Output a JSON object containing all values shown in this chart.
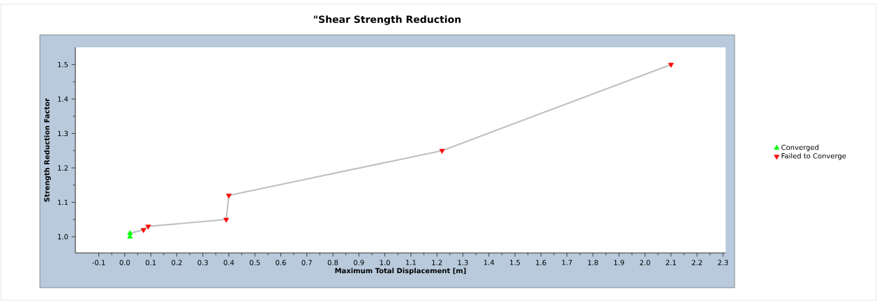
{
  "chart_data": {
    "type": "scatter",
    "title": "\"Shear Strength Reduction",
    "xlabel": "Maximum Total Displacement [m]",
    "ylabel": "Strength Reduction Factor",
    "xlim": [
      -0.19,
      2.31
    ],
    "ylim": [
      0.953,
      1.55
    ],
    "xticks": [
      -0.1,
      {
        "value": 0,
        "label": "0.0"
      },
      0.1,
      0.2,
      0.3,
      0.4,
      0.5,
      0.6,
      0.7,
      0.8,
      0.9,
      {
        "value": 1,
        "label": "1.0"
      },
      1.1,
      1.2,
      1.3,
      1.4,
      1.5,
      1.6,
      1.7,
      1.8,
      1.9,
      {
        "value": 2,
        "label": "2.0"
      },
      2.1,
      2.2,
      2.3
    ],
    "yticks": [
      {
        "value": 1,
        "label": "1.0"
      },
      1.1,
      1.2,
      1.3,
      1.4,
      1.5
    ],
    "legend": "right",
    "series": [
      {
        "type": "line",
        "color": "#c0c0c0",
        "marker": "none",
        "x": [
          0.02,
          0.02,
          0.072,
          0.09,
          0.39,
          0.4,
          1.22,
          2.1
        ],
        "values": [
          1.0,
          1.01,
          1.02,
          1.03,
          1.05,
          1.12,
          1.25,
          1.5
        ]
      },
      {
        "name": "Converged",
        "color": "#00ff00",
        "marker": "triangle",
        "x": [
          0.02,
          0.02
        ],
        "values": [
          1.0,
          1.01
        ]
      },
      {
        "name": "Failed to Converge",
        "color": "#ff0000",
        "marker": "triangle-down",
        "x": [
          0.072,
          0.09,
          0.39,
          0.4,
          1.22,
          2.1
        ],
        "values": [
          1.02,
          1.03,
          1.05,
          1.12,
          1.25,
          1.5
        ]
      }
    ]
  }
}
